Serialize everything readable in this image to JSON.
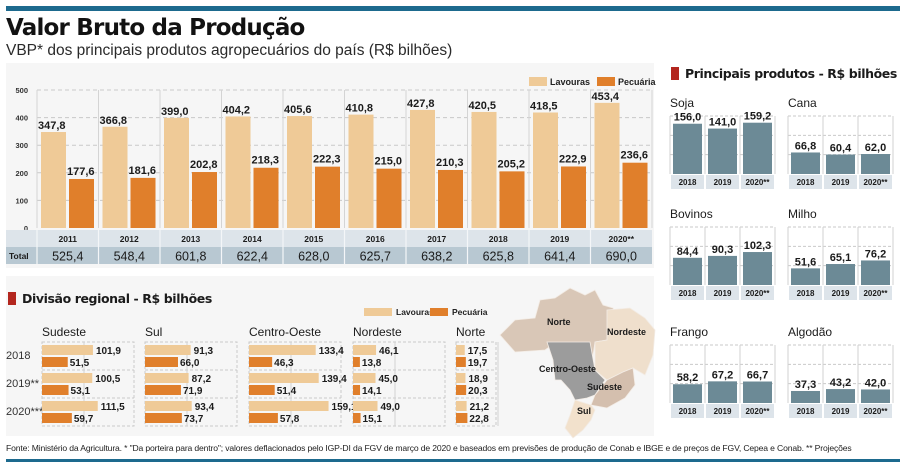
{
  "header": {
    "title": "Valor Bruto da Produção",
    "subtitle": "VBP* dos principais produtos agropecuários do país (R$ bilhões)"
  },
  "colors": {
    "lavouras": "#efca97",
    "pecuaria": "#e07f2b",
    "product_bar": "#6c8a96",
    "year_row": "#dde4ea",
    "total_row": "#b8c8d2",
    "accent_square": "#b3261e",
    "rule": "#1d6a8e",
    "map_norte": "#d9c7b7",
    "map_nordeste": "#efdfcc",
    "map_centro_oeste": "#9c9c9c",
    "map_sudeste": "#d4bfae",
    "map_sul": "#f2e1cc"
  },
  "legend": {
    "lavouras": "Lavouras",
    "pecuaria": "Pecuária"
  },
  "table": {
    "total_label": "Total",
    "totals": [
      "525,4",
      "548,4",
      "601,8",
      "622,4",
      "628,0",
      "625,7",
      "638,2",
      "625,8",
      "641,4",
      "690,0"
    ]
  },
  "regional": {
    "heading": "Divisão regional - R$ bilhões",
    "row_labels": [
      "2018",
      "2019**",
      "2020***"
    ],
    "map_labels": [
      "Norte",
      "Nordeste",
      "Centro-Oeste",
      "Sudeste",
      "Sul"
    ]
  },
  "products": {
    "heading": "Principais produtos - R$ bilhões"
  },
  "footer": {
    "text": "Fonte: Ministério da Agricultura. * \"Da porteira para dentro\"; valores deflacionados pelo IGP-DI da FGV de março de 2020 e baseados em previsões de produção de Conab e IBGE e de preços de FGV, Cepea e Conab. ** Projeções"
  },
  "chart_data": [
    {
      "type": "bar",
      "title": "VBP* dos principais produtos agropecuários do país (R$ bilhões)",
      "xlabel": "",
      "ylabel": "",
      "categories": [
        "2011",
        "2012",
        "2013",
        "2014",
        "2015",
        "2016",
        "2017",
        "2018",
        "2019",
        "2020**"
      ],
      "series": [
        {
          "name": "Lavouras",
          "values": [
            347.8,
            366.8,
            399.0,
            404.2,
            405.6,
            410.8,
            427.8,
            420.5,
            418.5,
            453.4
          ],
          "labels": [
            "347,8",
            "366,8",
            "399,0",
            "404,2",
            "405,6",
            "410,8",
            "427,8",
            "420,5",
            "418,5",
            "453,4"
          ]
        },
        {
          "name": "Pecuária",
          "values": [
            177.6,
            181.6,
            202.8,
            218.3,
            222.3,
            215.0,
            210.3,
            205.2,
            222.9,
            236.6
          ],
          "labels": [
            "177,6",
            "181,6",
            "202,8",
            "218,3",
            "222,3",
            "215,0",
            "210,3",
            "205,2",
            "222,9",
            "236,6"
          ]
        }
      ],
      "totals": [
        525.4,
        548.4,
        601.8,
        622.4,
        628.0,
        625.7,
        638.2,
        625.8,
        641.4,
        690.0
      ],
      "ylim": [
        0,
        500
      ],
      "yticks": [
        "0",
        "100",
        "200",
        "300",
        "400",
        "500"
      ],
      "grid": true,
      "legend": "top-right"
    },
    {
      "type": "bar",
      "orientation": "horizontal",
      "title": "Divisão regional - R$ bilhões",
      "regions": [
        {
          "name": "Sudeste",
          "lavouras": [
            101.9,
            100.5,
            111.5
          ],
          "pecuaria": [
            51.5,
            53.1,
            59.7
          ],
          "lav_labels": [
            "101,9",
            "100,5",
            "111,5"
          ],
          "pec_labels": [
            "51,5",
            "53,1",
            "59,7"
          ]
        },
        {
          "name": "Sul",
          "lavouras": [
            91.3,
            87.2,
            93.4
          ],
          "pecuaria": [
            66.0,
            71.9,
            73.7
          ],
          "lav_labels": [
            "91,3",
            "87,2",
            "93,4"
          ],
          "pec_labels": [
            "66,0",
            "71,9",
            "73,7"
          ]
        },
        {
          "name": "Centro-Oeste",
          "lavouras": [
            133.4,
            139.4,
            159.1
          ],
          "pecuaria": [
            46.3,
            51.4,
            57.8
          ],
          "lav_labels": [
            "133,4",
            "139,4",
            "159,1"
          ],
          "pec_labels": [
            "46,3",
            "51,4",
            "57,8"
          ]
        },
        {
          "name": "Nordeste",
          "lavouras": [
            46.1,
            45.0,
            49.0
          ],
          "pecuaria": [
            13.8,
            14.1,
            15.1
          ],
          "lav_labels": [
            "46,1",
            "45,0",
            "49,0"
          ],
          "pec_labels": [
            "13,8",
            "14,1",
            "15,1"
          ]
        },
        {
          "name": "Norte",
          "lavouras": [
            17.5,
            18.9,
            21.2
          ],
          "pecuaria": [
            19.7,
            20.3,
            22.8
          ],
          "lav_labels": [
            "17,5",
            "18,9",
            "21,2"
          ],
          "pec_labels": [
            "19,7",
            "20,3",
            "22,8"
          ]
        }
      ],
      "categories": [
        "2018",
        "2019**",
        "2020***"
      ],
      "legend": "top-right"
    },
    {
      "type": "bar",
      "title": "Principais produtos - R$ bilhões",
      "categories": [
        "2018",
        "2019",
        "2020**"
      ],
      "products": [
        {
          "name": "Soja",
          "values": [
            156.0,
            141.0,
            159.2
          ],
          "labels": [
            "156,0",
            "141,0",
            "159,2"
          ]
        },
        {
          "name": "Cana",
          "values": [
            66.8,
            60.4,
            62.0
          ],
          "labels": [
            "66,8",
            "60,4",
            "62,0"
          ]
        },
        {
          "name": "Bovinos",
          "values": [
            84.4,
            90.3,
            102.3
          ],
          "labels": [
            "84,4",
            "90,3",
            "102,3"
          ]
        },
        {
          "name": "Milho",
          "values": [
            51.6,
            65.1,
            76.2
          ],
          "labels": [
            "51,6",
            "65,1",
            "76,2"
          ]
        },
        {
          "name": "Frango",
          "values": [
            58.2,
            67.2,
            66.7
          ],
          "labels": [
            "58,2",
            "67,2",
            "66,7"
          ]
        },
        {
          "name": "Algodão",
          "values": [
            37.3,
            43.2,
            42.0
          ],
          "labels": [
            "37,3",
            "43,2",
            "42,0"
          ]
        }
      ],
      "ylim": [
        0,
        180
      ]
    }
  ]
}
